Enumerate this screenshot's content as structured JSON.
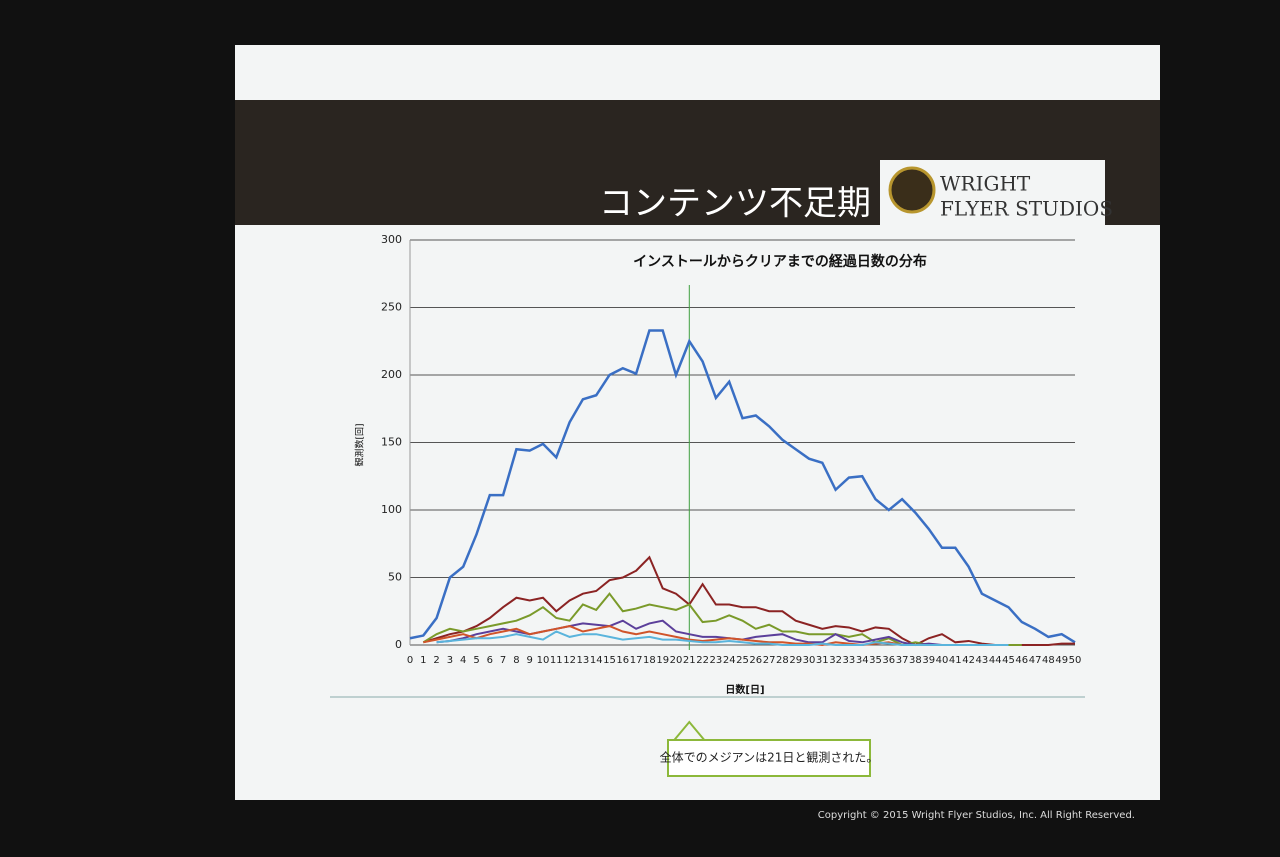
{
  "slide": {
    "title": "コンテンツ不足期",
    "logo": [
      "WRIGHT",
      "FLYER STUDIOS"
    ],
    "callout": "全体でのメジアンは21日と観測された。",
    "copyright": "Copyright © 2015 Wright Flyer Studios, Inc. All Right Reserved."
  },
  "chart_data": {
    "type": "line",
    "title": "インストールからクリアまでの経過日数の分布",
    "x_label": "日数[日]",
    "y_label": "観測数[回]",
    "x": [
      0,
      1,
      2,
      3,
      4,
      5,
      6,
      7,
      8,
      9,
      10,
      11,
      12,
      13,
      14,
      15,
      16,
      17,
      18,
      19,
      20,
      21,
      22,
      23,
      24,
      25,
      26,
      27,
      28,
      29,
      30,
      31,
      32,
      33,
      34,
      35,
      36,
      37,
      38,
      39,
      40,
      41,
      42,
      43,
      44,
      45,
      46,
      47,
      48,
      49,
      50
    ],
    "xlim": [
      0,
      50
    ],
    "ylim": [
      0,
      300
    ],
    "yticks": [
      0,
      50,
      100,
      150,
      200,
      250,
      300
    ],
    "grid": true,
    "median_x": 21,
    "median_color": "#3f9e3f",
    "series": [
      {
        "color": "#3a6fc4",
        "values": [
          5,
          7,
          20,
          50,
          58,
          82,
          111,
          111,
          145,
          144,
          149,
          139,
          165,
          182,
          185,
          200,
          205,
          201,
          233,
          233,
          200,
          225,
          210,
          183,
          195,
          168,
          170,
          162,
          152,
          145,
          138,
          135,
          115,
          124,
          125,
          108,
          100,
          108,
          98,
          86,
          72,
          72,
          58,
          38,
          33,
          28,
          17,
          12,
          6,
          8,
          2
        ]
      },
      {
        "color": "#8b2323",
        "values": [
          null,
          2,
          5,
          8,
          10,
          14,
          20,
          28,
          35,
          33,
          35,
          25,
          33,
          38,
          40,
          48,
          50,
          55,
          65,
          42,
          38,
          30,
          45,
          30,
          30,
          28,
          28,
          25,
          25,
          18,
          15,
          12,
          14,
          13,
          10,
          13,
          12,
          5,
          0,
          5,
          8,
          2,
          3,
          1,
          0,
          0,
          0,
          0,
          0,
          1,
          1
        ]
      },
      {
        "color": "#7a9a2a",
        "values": [
          null,
          2,
          8,
          12,
          10,
          12,
          14,
          16,
          18,
          22,
          28,
          20,
          18,
          30,
          26,
          38,
          25,
          27,
          30,
          28,
          26,
          30,
          17,
          18,
          22,
          18,
          12,
          15,
          10,
          10,
          8,
          8,
          8,
          6,
          8,
          2,
          5,
          0,
          2,
          0,
          0,
          0,
          0,
          0,
          0,
          0,
          0,
          null,
          null,
          null,
          null
        ]
      },
      {
        "color": "#5b3f9a",
        "values": [
          null,
          null,
          2,
          3,
          5,
          8,
          10,
          12,
          10,
          8,
          10,
          12,
          14,
          16,
          15,
          14,
          18,
          12,
          16,
          18,
          10,
          8,
          6,
          6,
          5,
          4,
          6,
          7,
          8,
          4,
          2,
          2,
          8,
          3,
          2,
          4,
          6,
          2,
          0,
          1,
          0,
          0,
          0,
          0,
          0,
          0,
          null,
          null,
          null,
          null,
          null
        ]
      },
      {
        "color": "#d0542a",
        "values": [
          null,
          2,
          4,
          6,
          8,
          5,
          8,
          10,
          12,
          8,
          10,
          12,
          14,
          10,
          12,
          14,
          10,
          8,
          10,
          8,
          6,
          4,
          3,
          4,
          5,
          4,
          3,
          2,
          2,
          1,
          1,
          0,
          2,
          1,
          0,
          1,
          2,
          0,
          0,
          0,
          0,
          0,
          0,
          0,
          0,
          null,
          null,
          null,
          null,
          null,
          null
        ]
      },
      {
        "color": "#5ab4dc",
        "values": [
          null,
          null,
          2,
          3,
          4,
          5,
          5,
          6,
          8,
          6,
          4,
          10,
          6,
          8,
          8,
          6,
          4,
          5,
          6,
          4,
          4,
          3,
          2,
          2,
          3,
          2,
          1,
          1,
          0,
          0,
          0,
          1,
          0,
          0,
          0,
          2,
          1,
          0,
          0,
          0,
          0,
          0,
          0,
          0,
          0,
          0,
          null,
          null,
          null,
          null,
          null
        ]
      }
    ]
  }
}
